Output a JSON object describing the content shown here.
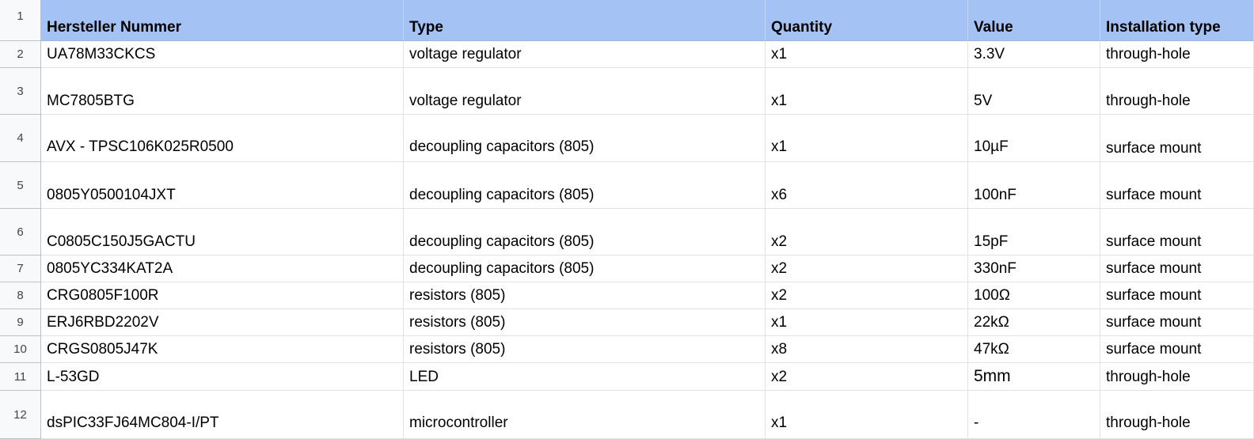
{
  "sheet": {
    "row_numbers": [
      "1",
      "2",
      "3",
      "4",
      "5",
      "6",
      "7",
      "8",
      "9",
      "10",
      "11",
      "12"
    ],
    "headers": [
      "Hersteller Nummer",
      "Type",
      "Quantity",
      "Value",
      "Installation type"
    ],
    "rows": [
      [
        "UA78M33CKCS",
        "voltage regulator",
        "x1",
        "3.3V",
        "through-hole"
      ],
      [
        "MC7805BTG",
        "voltage regulator",
        "x1",
        "5V",
        "through-hole"
      ],
      [
        "AVX - TPSC106K025R0500",
        "decoupling capacitors (805)",
        "x1",
        "10µF",
        "surface mount"
      ],
      [
        "0805Y0500104JXT",
        "decoupling capacitors (805)",
        "x6",
        "100nF",
        "surface mount"
      ],
      [
        "C0805C150J5GACTU",
        "decoupling capacitors (805)",
        "x2",
        "15pF",
        "surface mount"
      ],
      [
        "0805YC334KAT2A",
        "decoupling capacitors (805)",
        "x2",
        "330nF",
        "surface mount"
      ],
      [
        "CRG0805F100R",
        "resistors (805)",
        "x2",
        "100Ω",
        "surface mount"
      ],
      [
        "ERJ6RBD2202V",
        "resistors (805)",
        "x1",
        "22kΩ",
        "surface mount"
      ],
      [
        "CRGS0805J47K",
        "resistors (805)",
        "x8",
        "47kΩ",
        "surface mount"
      ],
      [
        "L-53GD",
        "LED",
        "x2",
        "5mm",
        "through-hole"
      ],
      [
        "dsPIC33FJ64MC804-I/PT",
        "microcontroller",
        "x1",
        "-",
        "through-hole"
      ]
    ]
  }
}
